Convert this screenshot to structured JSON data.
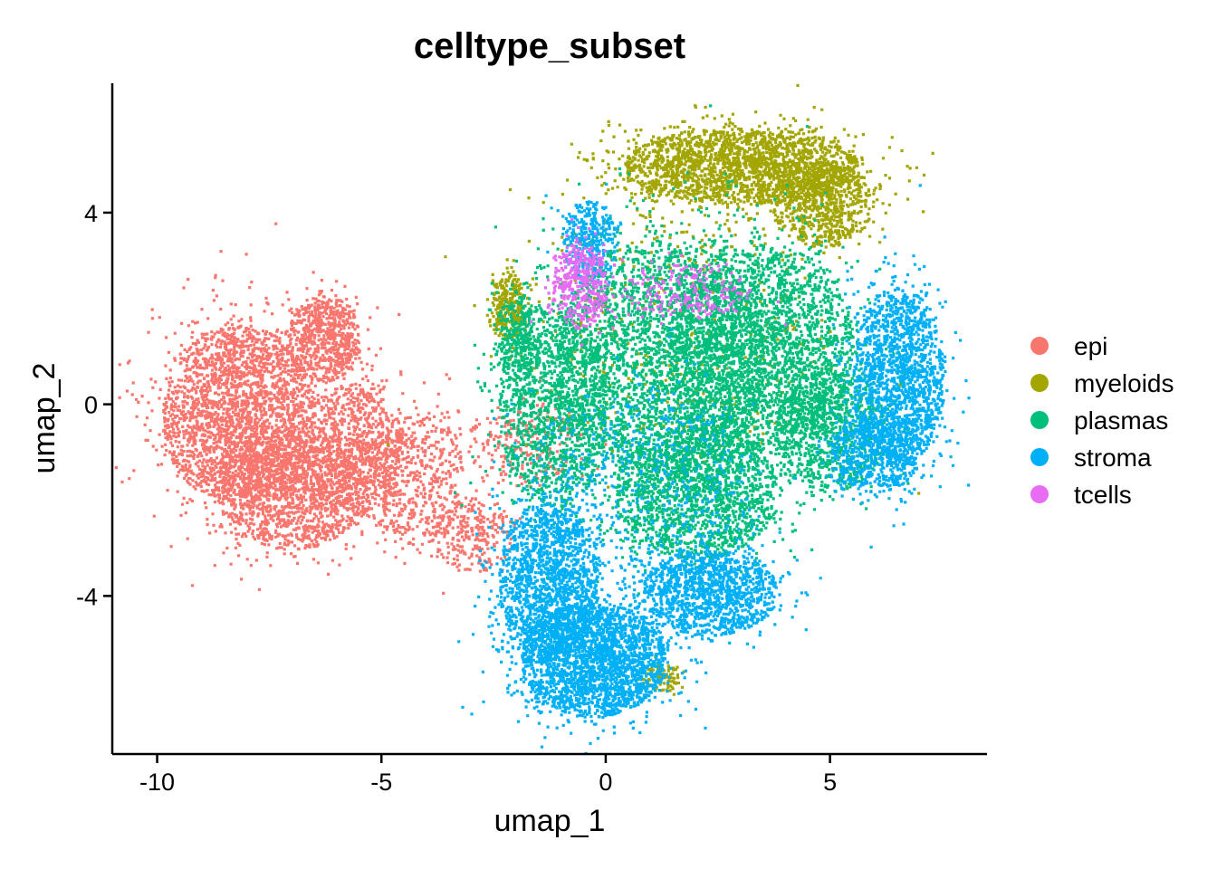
{
  "chart_data": {
    "type": "scatter",
    "title": "celltype_subset",
    "xlabel": "umap_1",
    "ylabel": "umap_2",
    "xlim": [
      -11.0,
      8.5
    ],
    "ylim": [
      -7.3,
      6.7
    ],
    "xticks": [
      -10,
      -5,
      0,
      5
    ],
    "yticks": [
      -4,
      0,
      4
    ],
    "xtick_labels": [
      "-10",
      "-5",
      "0",
      "5"
    ],
    "ytick_labels": [
      "-4",
      "0",
      "4"
    ],
    "grid": false,
    "legend_position": "right",
    "series": [
      {
        "name": "epi",
        "color": "#F8766D",
        "clusters": [
          {
            "cx": -8.2,
            "cy": -0.2,
            "rx": 1.7,
            "ry": 1.9,
            "n": 2600
          },
          {
            "cx": -7.0,
            "cy": -1.8,
            "rx": 1.6,
            "ry": 1.2,
            "n": 1400
          },
          {
            "cx": -6.3,
            "cy": 1.4,
            "rx": 0.8,
            "ry": 0.9,
            "n": 700
          },
          {
            "cx": -5.6,
            "cy": -0.9,
            "rx": 1.0,
            "ry": 1.4,
            "n": 900
          },
          {
            "cx": -4.2,
            "cy": -1.5,
            "rx": 1.0,
            "ry": 1.4,
            "n": 550
          },
          {
            "cx": -3.0,
            "cy": -2.7,
            "rx": 0.9,
            "ry": 0.8,
            "n": 250
          },
          {
            "cx": -1.8,
            "cy": -0.8,
            "rx": 1.3,
            "ry": 0.9,
            "n": 250
          }
        ]
      },
      {
        "name": "myeloids",
        "color": "#A3A500",
        "clusters": [
          {
            "cx": 3.0,
            "cy": 5.0,
            "rx": 2.6,
            "ry": 0.8,
            "n": 2200
          },
          {
            "cx": 4.8,
            "cy": 4.2,
            "rx": 1.1,
            "ry": 0.9,
            "n": 700
          },
          {
            "cx": -2.2,
            "cy": 2.1,
            "rx": 0.35,
            "ry": 0.7,
            "n": 280
          },
          {
            "cx": 1.2,
            "cy": -5.7,
            "rx": 0.4,
            "ry": 0.3,
            "n": 80
          },
          {
            "cx": 1.5,
            "cy": 1.5,
            "rx": 3.5,
            "ry": 2.8,
            "n": 450
          }
        ]
      },
      {
        "name": "plasmas",
        "color": "#00BF7D",
        "clusters": [
          {
            "cx": 1.2,
            "cy": 1.0,
            "rx": 2.3,
            "ry": 2.5,
            "n": 3600
          },
          {
            "cx": 3.5,
            "cy": 1.2,
            "rx": 2.0,
            "ry": 2.2,
            "n": 2500
          },
          {
            "cx": 2.0,
            "cy": -1.8,
            "rx": 1.8,
            "ry": 1.4,
            "n": 1800
          },
          {
            "cx": -1.2,
            "cy": 0.0,
            "rx": 1.2,
            "ry": 2.2,
            "n": 1300
          },
          {
            "cx": 5.0,
            "cy": -0.5,
            "rx": 1.2,
            "ry": 1.3,
            "n": 900
          },
          {
            "cx": -2.0,
            "cy": 1.4,
            "rx": 0.5,
            "ry": 0.9,
            "n": 250
          }
        ]
      },
      {
        "name": "stroma",
        "color": "#00B0F6",
        "clusters": [
          {
            "cx": -0.3,
            "cy": -5.3,
            "rx": 1.6,
            "ry": 1.2,
            "n": 2500
          },
          {
            "cx": -1.3,
            "cy": -3.6,
            "rx": 1.1,
            "ry": 1.6,
            "n": 1500
          },
          {
            "cx": 2.3,
            "cy": -3.9,
            "rx": 1.5,
            "ry": 0.9,
            "n": 1300
          },
          {
            "cx": 6.5,
            "cy": 0.6,
            "rx": 1.0,
            "ry": 1.9,
            "n": 1600
          },
          {
            "cx": 6.0,
            "cy": -1.0,
            "rx": 1.0,
            "ry": 0.8,
            "n": 600
          },
          {
            "cx": -0.4,
            "cy": 3.4,
            "rx": 0.6,
            "ry": 0.9,
            "n": 350
          },
          {
            "cx": 0.8,
            "cy": -1.5,
            "rx": 2.5,
            "ry": 2.0,
            "n": 500
          }
        ]
      },
      {
        "name": "tcells",
        "color": "#E76BF3",
        "clusters": [
          {
            "cx": -0.6,
            "cy": 2.5,
            "rx": 0.6,
            "ry": 0.9,
            "n": 400
          },
          {
            "cx": 1.8,
            "cy": 2.4,
            "rx": 1.4,
            "ry": 0.6,
            "n": 200
          }
        ]
      }
    ]
  }
}
